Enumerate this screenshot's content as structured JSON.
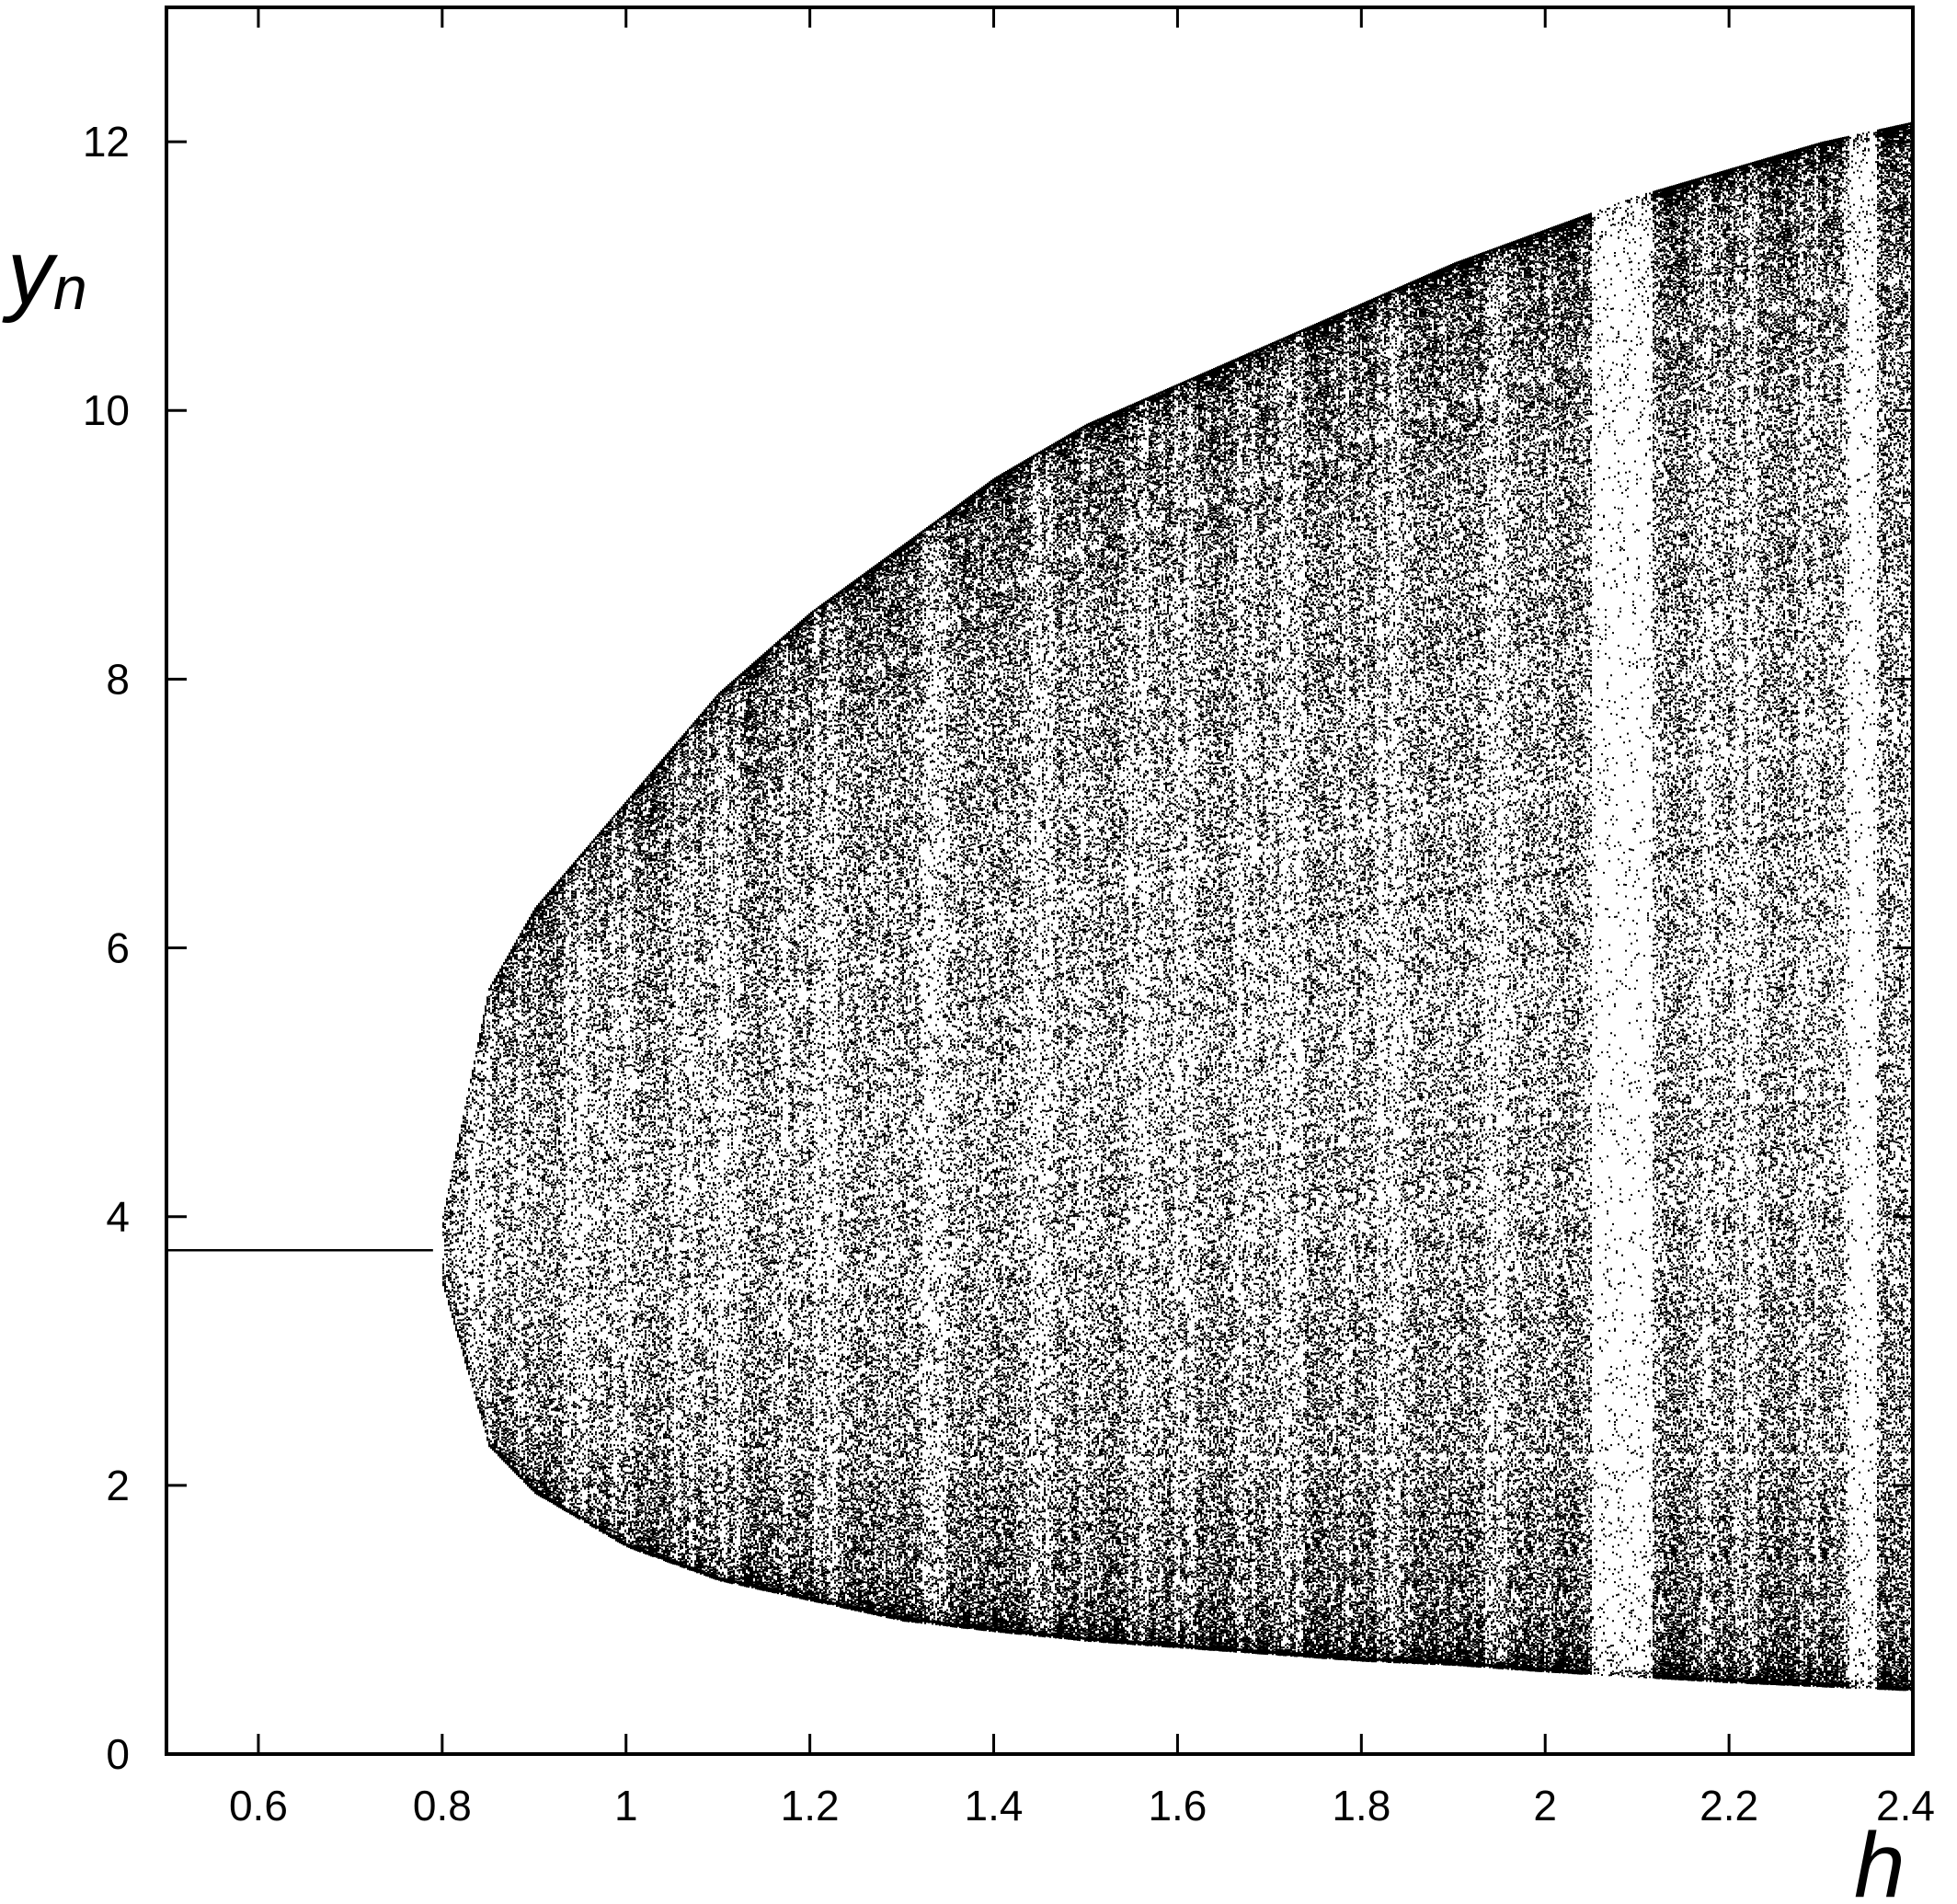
{
  "chart_data": {
    "type": "scatter",
    "title": "",
    "xlabel": "h",
    "ylabel_main": "y",
    "ylabel_sub": "n",
    "xlim": [
      0.5,
      2.4
    ],
    "ylim": [
      0,
      13
    ],
    "grid": false,
    "x_ticks": [
      0.6,
      0.8,
      1,
      1.2,
      1.4,
      1.6,
      1.8,
      2,
      2.2,
      2.4
    ],
    "x_tick_labels": [
      "0.6",
      "0.8",
      "1",
      "1.2",
      "1.4",
      "1.6",
      "1.8",
      "2",
      "2.2",
      "2.4"
    ],
    "y_ticks": [
      0,
      2,
      4,
      6,
      8,
      10,
      12
    ],
    "y_tick_labels": [
      "0",
      "2",
      "4",
      "6",
      "8",
      "10",
      "12"
    ],
    "fixed_point": {
      "x_range": [
        0.5,
        0.79
      ],
      "y": 3.75
    },
    "bifurcation_onset_h": 0.8,
    "upper_envelope": {
      "x": [
        0.8,
        0.85,
        0.9,
        1.0,
        1.1,
        1.2,
        1.3,
        1.4,
        1.5,
        1.6,
        1.7,
        1.8,
        1.9,
        2.0,
        2.1,
        2.2,
        2.3,
        2.4
      ],
      "y": [
        4.0,
        5.7,
        6.3,
        7.1,
        7.9,
        8.5,
        9.0,
        9.5,
        9.9,
        10.2,
        10.5,
        10.8,
        11.1,
        11.35,
        11.6,
        11.8,
        12.0,
        12.15
      ]
    },
    "lower_envelope": {
      "x": [
        0.8,
        0.85,
        0.9,
        1.0,
        1.1,
        1.2,
        1.3,
        1.4,
        1.5,
        1.6,
        1.7,
        1.8,
        1.9,
        2.0,
        2.1,
        2.2,
        2.3,
        2.4
      ],
      "y": [
        3.5,
        2.3,
        1.95,
        1.55,
        1.3,
        1.15,
        1.0,
        0.92,
        0.85,
        0.8,
        0.75,
        0.7,
        0.67,
        0.62,
        0.58,
        0.54,
        0.51,
        0.48
      ]
    },
    "periodic_windows": [
      {
        "x_range": [
          2.05,
          2.115
        ],
        "y_range": [
          0.55,
          11.5
        ]
      },
      {
        "x_range": [
          2.33,
          2.36
        ],
        "y_range": [
          0.5,
          12.0
        ]
      }
    ]
  }
}
